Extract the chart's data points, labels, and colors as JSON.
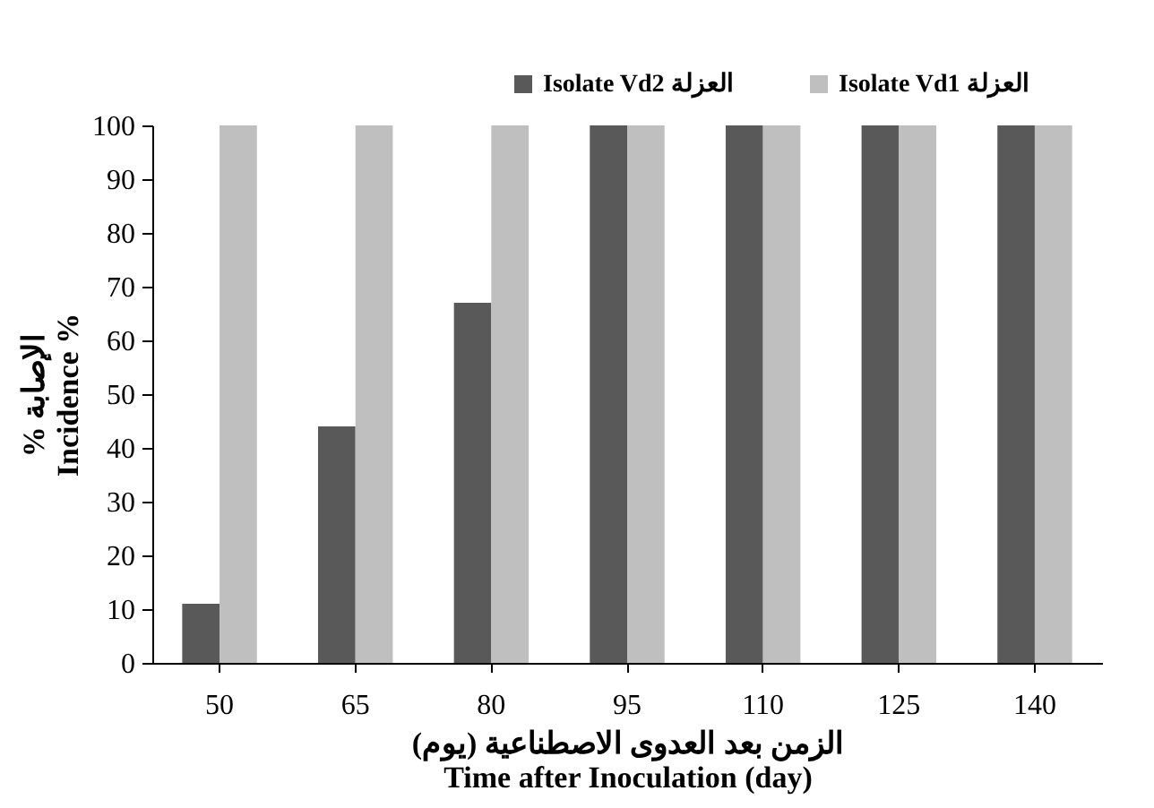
{
  "chart_data": {
    "type": "bar",
    "xlabel": "الزمن بعد العدوى الاصطناعية (يوم)\nTime after Inoculation (day)",
    "ylabel": "% الإصابة\nIncidence %",
    "categories": [
      "50",
      "65",
      "80",
      "95",
      "110",
      "125",
      "140"
    ],
    "series": [
      {
        "name": "Isolate Vd2 العزلة",
        "color": "#595959",
        "values": [
          11,
          44,
          67,
          100,
          100,
          100,
          100
        ]
      },
      {
        "name": "Isolate Vd1 العزلة",
        "color": "#bfbfbf",
        "values": [
          100,
          100,
          100,
          100,
          100,
          100,
          100
        ]
      }
    ],
    "ylim": [
      0,
      100
    ],
    "yticks": [
      0,
      10,
      20,
      30,
      40,
      50,
      60,
      70,
      80,
      90,
      100
    ],
    "legend": "top right"
  }
}
